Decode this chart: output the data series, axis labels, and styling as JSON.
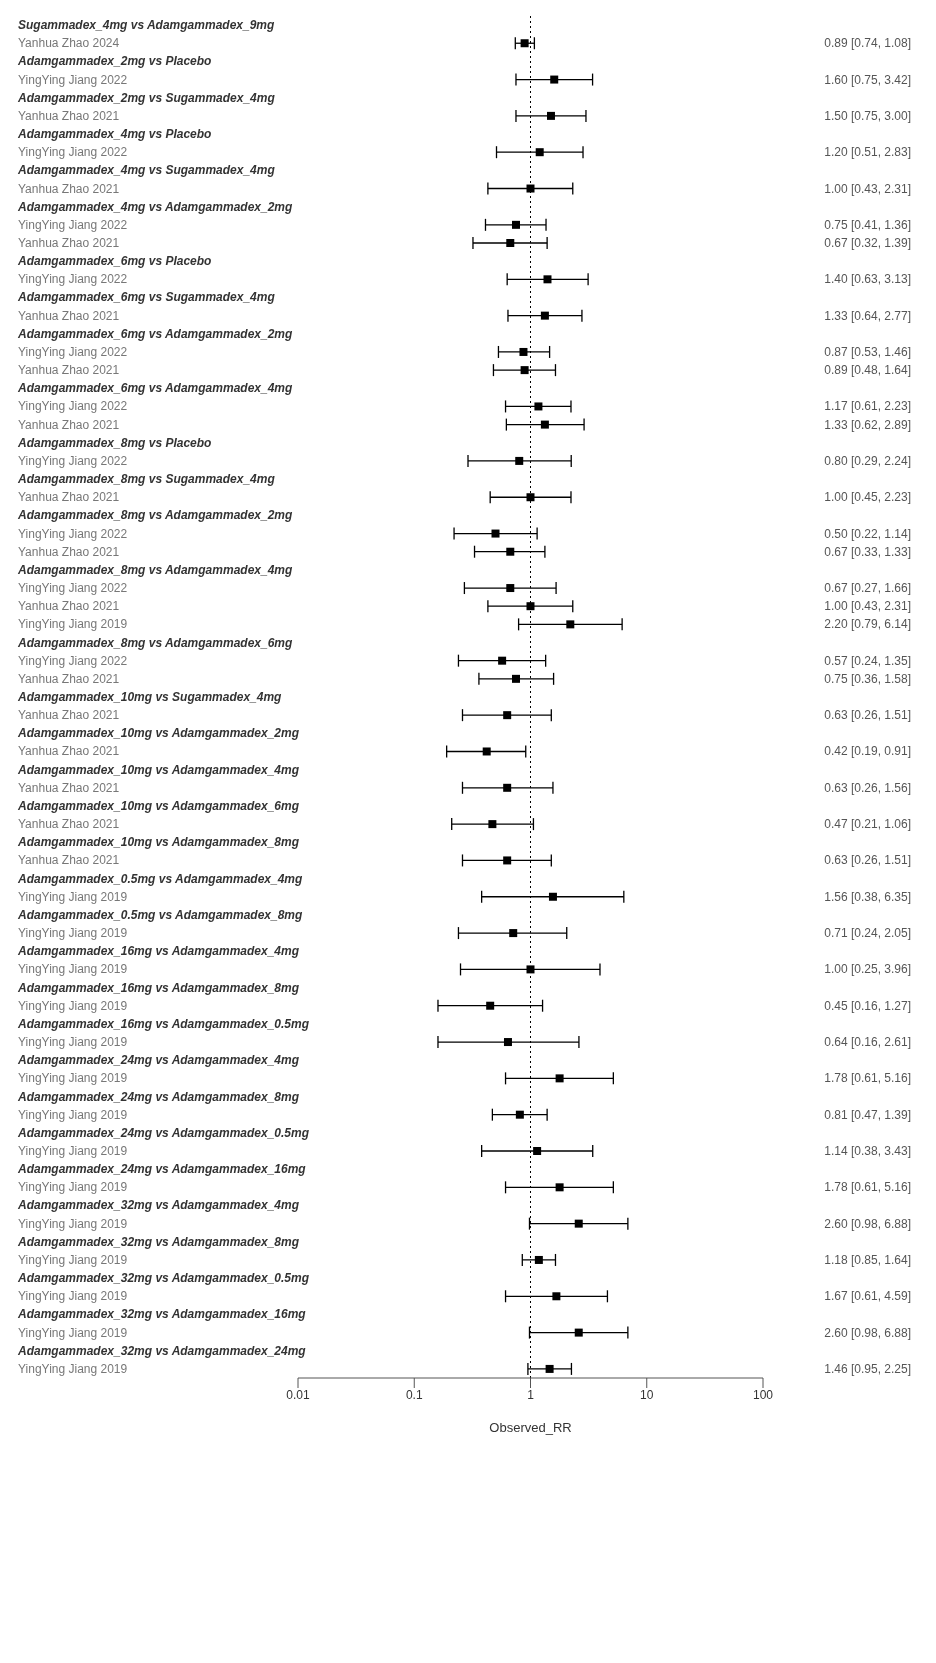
{
  "chart_data": {
    "type": "scatter",
    "orientation": "horizontal",
    "xlabel": "Observed_RR",
    "log": "x",
    "xlim": [
      0.01,
      100
    ],
    "xticks": [
      0.01,
      0.1,
      1,
      10,
      100
    ],
    "marker": "square",
    "color": "#000000",
    "ref_lines": [
      {
        "axis": "x",
        "value": 1,
        "line_style": "dotted",
        "color": "#000000"
      }
    ],
    "categories": [
      "Sugammadex_4mg vs Adamgammadex_9mg",
      "Yanhua Zhao 2024",
      "Adamgammadex_2mg vs Placebo",
      "YingYing Jiang 2022",
      "Adamgammadex_2mg vs Sugammadex_4mg",
      "Yanhua Zhao 2021",
      "Adamgammadex_4mg vs Placebo",
      "YingYing Jiang 2022",
      "Adamgammadex_4mg vs Sugammadex_4mg",
      "Yanhua Zhao 2021",
      "Adamgammadex_4mg vs Adamgammadex_2mg",
      "YingYing Jiang 2022",
      "Yanhua Zhao 2021",
      "Adamgammadex_6mg vs Placebo",
      "YingYing Jiang 2022",
      "Adamgammadex_6mg vs Sugammadex_4mg",
      "Yanhua Zhao 2021",
      "Adamgammadex_6mg vs Adamgammadex_2mg",
      "YingYing Jiang 2022",
      "Yanhua Zhao 2021",
      "Adamgammadex_6mg vs Adamgammadex_4mg",
      "YingYing Jiang 2022",
      "Yanhua Zhao 2021",
      "Adamgammadex_8mg vs Placebo",
      "YingYing Jiang 2022",
      "Adamgammadex_8mg vs Sugammadex_4mg",
      "Yanhua Zhao 2021",
      "Adamgammadex_8mg vs Adamgammadex_2mg",
      "YingYing Jiang 2022",
      "Yanhua Zhao 2021",
      "Adamgammadex_8mg vs Adamgammadex_4mg",
      "YingYing Jiang 2022",
      "Yanhua Zhao 2021",
      "YingYing Jiang 2019",
      "Adamgammadex_8mg vs Adamgammadex_6mg",
      "YingYing Jiang 2022",
      "Yanhua Zhao 2021",
      "Adamgammadex_10mg vs Sugammadex_4mg",
      "Yanhua Zhao 2021",
      "Adamgammadex_10mg vs Adamgammadex_2mg",
      "Yanhua Zhao 2021",
      "Adamgammadex_10mg vs Adamgammadex_4mg",
      "Yanhua Zhao 2021",
      "Adamgammadex_10mg vs Adamgammadex_6mg",
      "Yanhua Zhao 2021",
      "Adamgammadex_10mg vs Adamgammadex_8mg",
      "Yanhua Zhao 2021",
      "Adamgammadex_0.5mg vs Adamgammadex_4mg",
      "YingYing Jiang 2019",
      "Adamgammadex_0.5mg vs Adamgammadex_8mg",
      "YingYing Jiang 2019",
      "Adamgammadex_16mg vs Adamgammadex_4mg",
      "YingYing Jiang 2019",
      "Adamgammadex_16mg vs Adamgammadex_8mg",
      "YingYing Jiang 2019",
      "Adamgammadex_16mg vs Adamgammadex_0.5mg",
      "YingYing Jiang 2019",
      "Adamgammadex_24mg vs Adamgammadex_4mg",
      "YingYing Jiang 2019",
      "Adamgammadex_24mg vs Adamgammadex_8mg",
      "YingYing Jiang 2019",
      "Adamgammadex_24mg vs Adamgammadex_0.5mg",
      "YingYing Jiang 2019",
      "Adamgammadex_24mg vs Adamgammadex_16mg",
      "YingYing Jiang 2019",
      "Adamgammadex_32mg vs Adamgammadex_4mg",
      "YingYing Jiang 2019",
      "Adamgammadex_32mg vs Adamgammadex_8mg",
      "YingYing Jiang 2019",
      "Adamgammadex_32mg vs Adamgammadex_0.5mg",
      "YingYing Jiang 2019",
      "Adamgammadex_32mg vs Adamgammadex_16mg",
      "YingYing Jiang 2019",
      "Adamgammadex_32mg vs Adamgammadex_24mg",
      "YingYing Jiang 2019"
    ],
    "values": [
      null,
      0.89,
      null,
      1.6,
      null,
      1.5,
      null,
      1.2,
      null,
      1.0,
      null,
      0.75,
      0.67,
      null,
      1.4,
      null,
      1.33,
      null,
      0.87,
      0.89,
      null,
      1.17,
      1.33,
      null,
      0.8,
      null,
      1.0,
      null,
      0.5,
      0.67,
      null,
      0.67,
      1.0,
      2.2,
      null,
      0.57,
      0.75,
      null,
      0.63,
      null,
      0.42,
      null,
      0.63,
      null,
      0.47,
      null,
      0.63,
      null,
      1.56,
      null,
      0.71,
      null,
      1.0,
      null,
      0.45,
      null,
      0.64,
      null,
      1.78,
      null,
      0.81,
      null,
      1.14,
      null,
      1.78,
      null,
      2.6,
      null,
      1.18,
      null,
      1.67,
      null,
      2.6,
      null,
      1.46
    ],
    "errors": [
      null,
      [
        0.74,
        1.08
      ],
      null,
      [
        0.75,
        3.42
      ],
      null,
      [
        0.75,
        3.0
      ],
      null,
      [
        0.51,
        2.83
      ],
      null,
      [
        0.43,
        2.31
      ],
      null,
      [
        0.41,
        1.36
      ],
      [
        0.32,
        1.39
      ],
      null,
      [
        0.63,
        3.13
      ],
      null,
      [
        0.64,
        2.77
      ],
      null,
      [
        0.53,
        1.46
      ],
      [
        0.48,
        1.64
      ],
      null,
      [
        0.61,
        2.23
      ],
      [
        0.62,
        2.89
      ],
      null,
      [
        0.29,
        2.24
      ],
      null,
      [
        0.45,
        2.23
      ],
      null,
      [
        0.22,
        1.14
      ],
      [
        0.33,
        1.33
      ],
      null,
      [
        0.27,
        1.66
      ],
      [
        0.43,
        2.31
      ],
      [
        0.79,
        6.14
      ],
      null,
      [
        0.24,
        1.35
      ],
      [
        0.36,
        1.58
      ],
      null,
      [
        0.26,
        1.51
      ],
      null,
      [
        0.19,
        0.91
      ],
      null,
      [
        0.26,
        1.56
      ],
      null,
      [
        0.21,
        1.06
      ],
      null,
      [
        0.26,
        1.51
      ],
      null,
      [
        0.38,
        6.35
      ],
      null,
      [
        0.24,
        2.05
      ],
      null,
      [
        0.25,
        3.96
      ],
      null,
      [
        0.16,
        1.27
      ],
      null,
      [
        0.16,
        2.61
      ],
      null,
      [
        0.61,
        5.16
      ],
      null,
      [
        0.47,
        1.39
      ],
      null,
      [
        0.38,
        3.43
      ],
      null,
      [
        0.61,
        5.16
      ],
      null,
      [
        0.98,
        6.88
      ],
      null,
      [
        0.85,
        1.64
      ],
      null,
      [
        0.61,
        4.59
      ],
      null,
      [
        0.98,
        6.88
      ],
      null,
      [
        0.95,
        2.25
      ]
    ],
    "value_labels": [
      null,
      "0.89 [0.74, 1.08]",
      null,
      "1.60 [0.75, 3.42]",
      null,
      "1.50 [0.75, 3.00]",
      null,
      "1.20 [0.51, 2.83]",
      null,
      "1.00 [0.43, 2.31]",
      null,
      "0.75 [0.41, 1.36]",
      "0.67 [0.32, 1.39]",
      null,
      "1.40 [0.63, 3.13]",
      null,
      "1.33 [0.64, 2.77]",
      null,
      "0.87 [0.53, 1.46]",
      "0.89 [0.48, 1.64]",
      null,
      "1.17 [0.61, 2.23]",
      "1.33 [0.62, 2.89]",
      null,
      "0.80 [0.29, 2.24]",
      null,
      "1.00 [0.45, 2.23]",
      null,
      "0.50 [0.22, 1.14]",
      "0.67 [0.33, 1.33]",
      null,
      "0.67 [0.27, 1.66]",
      "1.00 [0.43, 2.31]",
      "2.20 [0.79, 6.14]",
      null,
      "0.57 [0.24, 1.35]",
      "0.75 [0.36, 1.58]",
      null,
      "0.63 [0.26, 1.51]",
      null,
      "0.42 [0.19, 0.91]",
      null,
      "0.63 [0.26, 1.56]",
      null,
      "0.47 [0.21, 1.06]",
      null,
      "0.63 [0.26, 1.51]",
      null,
      "1.56 [0.38, 6.35]",
      null,
      "0.71 [0.24, 2.05]",
      null,
      "1.00 [0.25, 3.96]",
      null,
      "0.45 [0.16, 1.27]",
      null,
      "0.64 [0.16, 2.61]",
      null,
      "1.78 [0.61, 5.16]",
      null,
      "0.81 [0.47, 1.39]",
      null,
      "1.14 [0.38, 3.43]",
      null,
      "1.78 [0.61, 5.16]",
      null,
      "2.60 [0.98, 6.88]",
      null,
      "1.18 [0.85, 1.64]",
      null,
      "1.67 [0.61, 4.59]",
      null,
      "2.60 [0.98, 6.88]",
      null,
      "1.46 [0.95, 2.25]"
    ]
  }
}
